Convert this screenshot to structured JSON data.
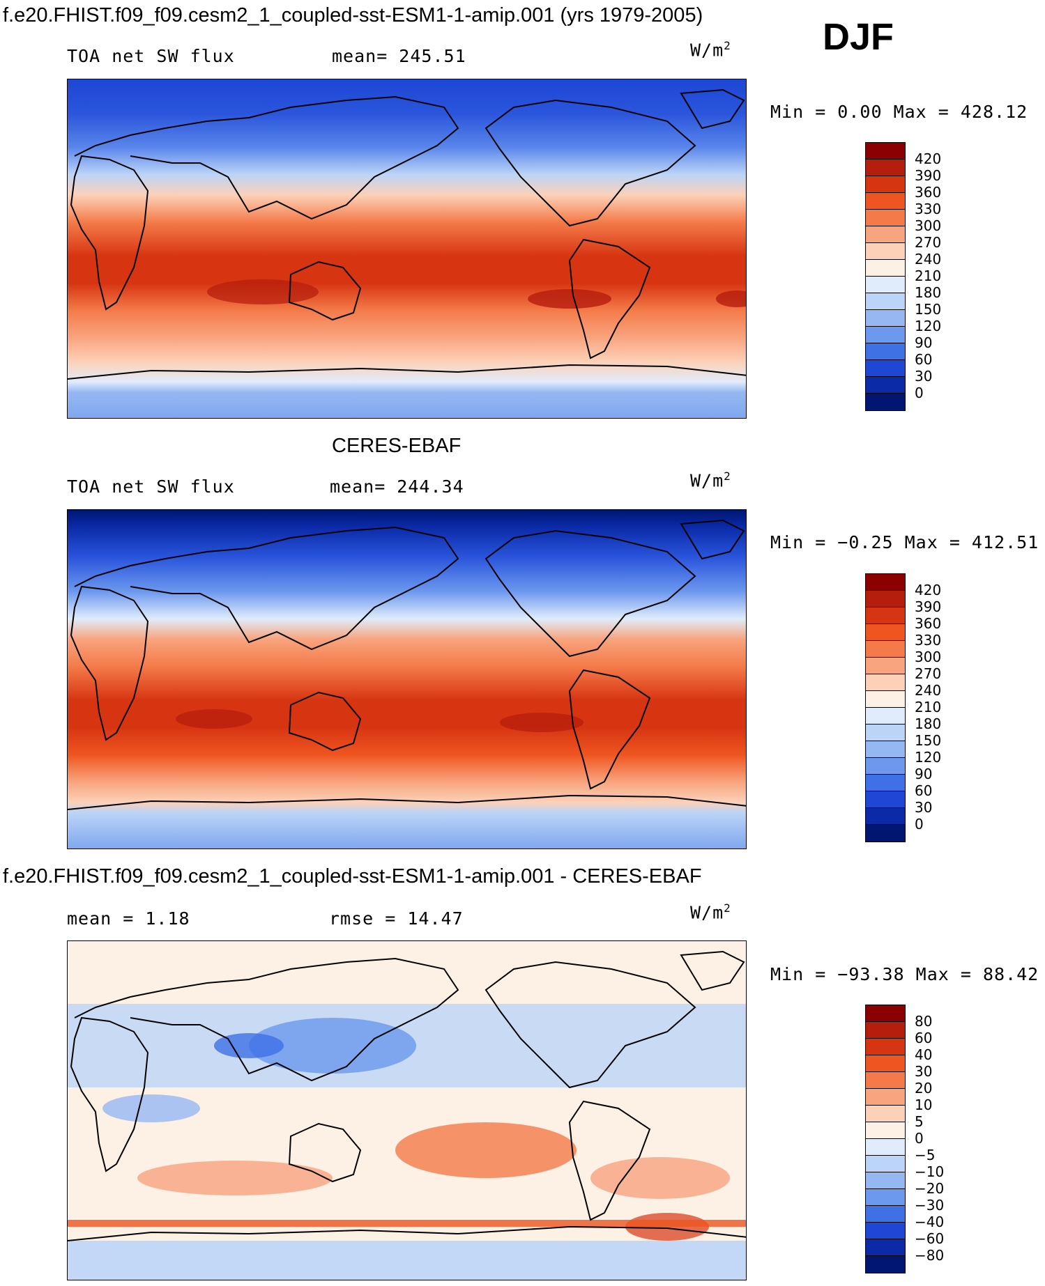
{
  "header": {
    "title": "f.e20.FHIST.f09_f09.cesm2_1_coupled-sst-ESM1-1-amip.001 (yrs 1979-2005)",
    "season": "DJF"
  },
  "panels": [
    {
      "title": "",
      "field": "TOA net SW flux",
      "stat1": "mean= 245.51",
      "units": "W/m",
      "units_sup": "2",
      "minmax": "Min =    0.00 Max = 428.12",
      "kind": "full"
    },
    {
      "title": "CERES-EBAF",
      "field": "TOA net SW flux",
      "stat1": "mean= 244.34",
      "units": "W/m",
      "units_sup": "2",
      "minmax": "Min =  −0.25 Max = 412.51",
      "kind": "full"
    },
    {
      "title": "f.e20.FHIST.f09_f09.cesm2_1_coupled-sst-ESM1-1-amip.001 - CERES-EBAF",
      "field": "mean =    1.18",
      "stat1": "rmse =   14.47",
      "units": "W/m",
      "units_sup": "2",
      "minmax": "Min = −93.38 Max =  88.42",
      "kind": "diff"
    }
  ],
  "colorbars": {
    "full": {
      "labels": [
        "420",
        "390",
        "360",
        "330",
        "300",
        "270",
        "240",
        "210",
        "180",
        "150",
        "120",
        "90",
        "60",
        "30",
        "0"
      ],
      "colors": [
        "#8b0000",
        "#b51d0c",
        "#d73512",
        "#ee5520",
        "#f47b49",
        "#f8a47f",
        "#fcd1b7",
        "#fdf0e4",
        "#e0ecfb",
        "#bcd4f7",
        "#96b8f2",
        "#6c98ee",
        "#3f70e6",
        "#1d47d4",
        "#0a2aa8",
        "#001670"
      ]
    },
    "diff": {
      "labels": [
        "80",
        "60",
        "40",
        "30",
        "20",
        "10",
        "5",
        "0",
        "−5",
        "−10",
        "−20",
        "−30",
        "−40",
        "−60",
        "−80"
      ],
      "colors": [
        "#8b0000",
        "#b51d0c",
        "#d73512",
        "#ee5520",
        "#f47b49",
        "#f8a47f",
        "#fcd1b7",
        "#fdf0e4",
        "#e0ecfb",
        "#bcd4f7",
        "#96b8f2",
        "#6c98ee",
        "#3f70e6",
        "#1d47d4",
        "#0a2aa8",
        "#001670"
      ]
    }
  }
}
